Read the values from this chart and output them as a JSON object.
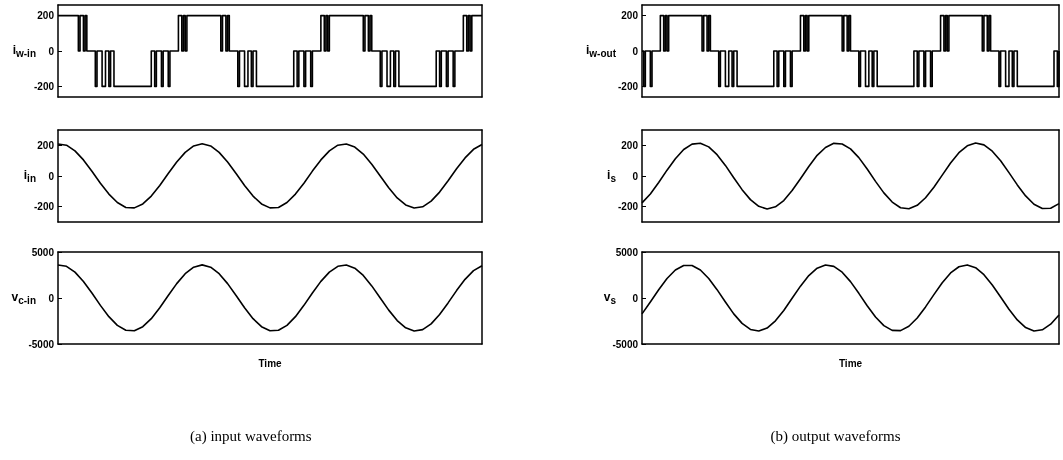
{
  "chart_data": [
    {
      "type": "step",
      "ylabel": "i$_{w-in}$",
      "ylim": [
        -260,
        260
      ],
      "yticks": [
        -200,
        0,
        200
      ],
      "tick_labels": "y",
      "color": "#000000",
      "categories": [
        null,
        null,
        null,
        null,
        null,
        null,
        null,
        null,
        null,
        null,
        null,
        null,
        null,
        null,
        null,
        null,
        null,
        null,
        null,
        null,
        null,
        null,
        null,
        null,
        null,
        null,
        null,
        null,
        null,
        null,
        null,
        null,
        null,
        null,
        null,
        null,
        null,
        null,
        null,
        null,
        null,
        null,
        null,
        null,
        null,
        null,
        null,
        null,
        null,
        null,
        null,
        null,
        null,
        null,
        null,
        null,
        null,
        null,
        null,
        null,
        null,
        null,
        null,
        null,
        null,
        null,
        null,
        null,
        null,
        null,
        null,
        null,
        null,
        null,
        null,
        null,
        null,
        null,
        null,
        null,
        null,
        null,
        null,
        null,
        null,
        null,
        null,
        null,
        null,
        null,
        null,
        null,
        null,
        null,
        null,
        null,
        null,
        null,
        null,
        null,
        null,
        null,
        null,
        null,
        null,
        null,
        null,
        null,
        null,
        null,
        null,
        null,
        null,
        null,
        null,
        null,
        null,
        null,
        null,
        null,
        null,
        null,
        null,
        null,
        null,
        null,
        null,
        null,
        null,
        null,
        null,
        null,
        null,
        null,
        null,
        null,
        null,
        null,
        null,
        null,
        null,
        null,
        null,
        null,
        null,
        null,
        null,
        null,
        null,
        null,
        null,
        null,
        null,
        null,
        null,
        null,
        null,
        null,
        null,
        null,
        null,
        null,
        null,
        null,
        null,
        null,
        null,
        null,
        null,
        null,
        null,
        null,
        null,
        null,
        null,
        null,
        null,
        null,
        null,
        null,
        null,
        null,
        null,
        null,
        null,
        null,
        null,
        null,
        null,
        null,
        null,
        null,
        null,
        null,
        null,
        null,
        null,
        null,
        null,
        null,
        null,
        null,
        null,
        null,
        null,
        null,
        null,
        null,
        null,
        null,
        null,
        null,
        null,
        null,
        null,
        null,
        null,
        null,
        null,
        null,
        null,
        null,
        null,
        null,
        null,
        null,
        null,
        null,
        null,
        null,
        null,
        null,
        null,
        null,
        null,
        null,
        null,
        null,
        null,
        null,
        null,
        null,
        null,
        null,
        null,
        null,
        null,
        null,
        null,
        null,
        null
      ],
      "values": [
        200,
        200,
        200,
        200,
        200,
        200,
        200,
        200,
        200,
        200,
        200,
        200,
        0,
        200,
        200,
        0,
        200,
        0,
        0,
        0,
        0,
        0,
        -200,
        0,
        0,
        0,
        -200,
        -200,
        0,
        0,
        -200,
        0,
        0,
        -200,
        -200,
        -200,
        -200,
        -200,
        -200,
        -200,
        -200,
        -200,
        -200,
        -200,
        -200,
        -200,
        -200,
        -200,
        -200,
        -200,
        -200,
        -200,
        -200,
        -200,
        -200,
        0,
        0,
        -200,
        0,
        0,
        0,
        -200,
        0,
        0,
        0,
        -200,
        0,
        0,
        0,
        0,
        0,
        200,
        200,
        0,
        200,
        0,
        200,
        200,
        200,
        200,
        200,
        200,
        200,
        200,
        200,
        200,
        200,
        200,
        200,
        200,
        200,
        200,
        200,
        200,
        200,
        200,
        0,
        200,
        200,
        0,
        200,
        0,
        0,
        0,
        0,
        0,
        -200,
        0,
        0,
        0,
        -200,
        -200,
        0,
        0,
        -200,
        0,
        0,
        -200,
        -200,
        -200,
        -200,
        -200,
        -200,
        -200,
        -200,
        -200,
        -200,
        -200,
        -200,
        -200,
        -200,
        -200,
        -200,
        -200,
        -200,
        -200,
        -200,
        -200,
        -200,
        0,
        0,
        -200,
        0,
        0,
        0,
        -200,
        0,
        0,
        0,
        -200,
        0,
        0,
        0,
        0,
        0,
        200,
        200,
        0,
        200,
        0,
        200,
        200,
        200,
        200,
        200,
        200,
        200,
        200,
        200,
        200,
        200,
        200,
        200,
        200,
        200,
        200,
        200,
        200,
        200,
        200,
        0,
        200,
        200,
        0,
        200,
        0,
        0,
        0,
        0,
        0,
        -200,
        0,
        0,
        0,
        -200,
        -200,
        0,
        0,
        -200,
        0,
        0,
        -200,
        -200,
        -200,
        -200,
        -200,
        -200,
        -200,
        -200,
        -200,
        -200,
        -200,
        -200,
        -200,
        -200,
        -200,
        -200,
        -200,
        -200,
        -200,
        -200,
        -200,
        -200,
        0,
        0,
        -200,
        0,
        0,
        0,
        -200,
        0,
        0,
        0,
        -200,
        0,
        0,
        0,
        0,
        0,
        200,
        200,
        0,
        200,
        0,
        200,
        200,
        200,
        200,
        200,
        200,
        200
      ]
    },
    {
      "type": "line",
      "ylabel": "i$_{in}$",
      "ylim": [
        -300,
        300
      ],
      "yticks": [
        -200,
        0,
        200
      ],
      "tick_labels": "y",
      "color": "#000000",
      "categories": [
        null,
        null,
        null,
        null,
        null,
        null,
        null,
        null,
        null,
        null,
        null,
        null,
        null,
        null,
        null,
        null,
        null,
        null,
        null,
        null,
        null,
        null,
        null,
        null,
        null,
        null,
        null,
        null,
        null,
        null,
        null,
        null,
        null,
        null,
        null,
        null,
        null,
        null,
        null,
        null,
        null,
        null,
        null,
        null,
        null,
        null,
        null,
        null,
        null,
        null,
        null
      ],
      "values": [
        209,
        201,
        164,
        105,
        31,
        -47,
        -118,
        -173,
        -205,
        -208,
        -182,
        -131,
        -62,
        16,
        91,
        154,
        196,
        210,
        196,
        154,
        91,
        16,
        -62,
        -131,
        -182,
        -208,
        -205,
        -173,
        -118,
        -47,
        32,
        105,
        164,
        201,
        209,
        189,
        143,
        77,
        0,
        -77,
        -143,
        -189,
        -209,
        -201,
        -164,
        -105,
        -31,
        47,
        118,
        174,
        205
      ]
    },
    {
      "type": "line",
      "ylabel": "v$_{c-in}$",
      "xlabel": "Time",
      "annotations": [
        "(a) input waveforms"
      ],
      "ylim": [
        -5000,
        5000
      ],
      "yticks": [
        -5000,
        0,
        5000
      ],
      "tick_labels": "y",
      "color": "#000000",
      "categories": [
        null,
        null,
        null,
        null,
        null,
        null,
        null,
        null,
        null,
        null,
        null,
        null,
        null,
        null,
        null,
        null,
        null,
        null,
        null,
        null,
        null,
        null,
        null,
        null,
        null,
        null,
        null,
        null,
        null,
        null,
        null,
        null,
        null,
        null,
        null,
        null,
        null,
        null,
        null,
        null,
        null,
        null,
        null,
        null,
        null,
        null,
        null,
        null,
        null,
        null,
        null
      ],
      "values": [
        3589,
        3442,
        2815,
        1800,
        536,
        -803,
        -2027,
        -2974,
        -3510,
        -3560,
        -3118,
        -2246,
        -1062,
        270,
        1562,
        2639,
        3352,
        3600,
        3352,
        2639,
        1562,
        266,
        -1062,
        -2246,
        -3118,
        -3560,
        -3510,
        -2974,
        -2027,
        -799,
        540,
        1804,
        2815,
        3442,
        3589,
        3244,
        2448,
        1314,
        -4,
        -1318,
        -2452,
        -3244,
        -3589,
        -3438,
        -2812,
        -1796,
        -533,
        806,
        2030,
        2977,
        3510
      ]
    },
    {
      "type": "step",
      "ylabel": "i$_{w-out}$",
      "ylim": [
        -260,
        260
      ],
      "yticks": [
        -200,
        0,
        200
      ],
      "tick_labels": "y",
      "color": "#000000",
      "categories": [
        null,
        null,
        null,
        null,
        null,
        null,
        null,
        null,
        null,
        null,
        null,
        null,
        null,
        null,
        null,
        null,
        null,
        null,
        null,
        null,
        null,
        null,
        null,
        null,
        null,
        null,
        null,
        null,
        null,
        null,
        null,
        null,
        null,
        null,
        null,
        null,
        null,
        null,
        null,
        null,
        null,
        null,
        null,
        null,
        null,
        null,
        null,
        null,
        null,
        null,
        null,
        null,
        null,
        null,
        null,
        null,
        null,
        null,
        null,
        null,
        null,
        null,
        null,
        null,
        null,
        null,
        null,
        null,
        null,
        null,
        null,
        null,
        null,
        null,
        null,
        null,
        null,
        null,
        null,
        null,
        null,
        null,
        null,
        null,
        null,
        null,
        null,
        null,
        null,
        null,
        null,
        null,
        null,
        null,
        null,
        null,
        null,
        null,
        null,
        null,
        null,
        null,
        null,
        null,
        null,
        null,
        null,
        null,
        null,
        null,
        null,
        null,
        null,
        null,
        null,
        null,
        null,
        null,
        null,
        null,
        null,
        null,
        null,
        null,
        null,
        null,
        null,
        null,
        null,
        null,
        null,
        null,
        null,
        null,
        null,
        null,
        null,
        null,
        null,
        null,
        null,
        null,
        null,
        null,
        null,
        null,
        null,
        null,
        null,
        null,
        null,
        null,
        null,
        null,
        null,
        null,
        null,
        null,
        null,
        null,
        null,
        null,
        null,
        null,
        null,
        null,
        null,
        null,
        null,
        null,
        null,
        null,
        null,
        null,
        null,
        null,
        null,
        null,
        null,
        null,
        null,
        null,
        null,
        null,
        null,
        null,
        null,
        null,
        null,
        null,
        null,
        null,
        null,
        null,
        null,
        null,
        null,
        null,
        null,
        null,
        null,
        null,
        null,
        null,
        null,
        null,
        null,
        null,
        null,
        null,
        null,
        null,
        null,
        null,
        null,
        null,
        null,
        null,
        null,
        null,
        null,
        null,
        null,
        null,
        null,
        null,
        null,
        null,
        null,
        null,
        null,
        null,
        null,
        null,
        null,
        null,
        null,
        null,
        null,
        null,
        null,
        null,
        null,
        null,
        null,
        null,
        null,
        null,
        null,
        null,
        null
      ],
      "values": [
        0,
        -200,
        0,
        0,
        0,
        -200,
        0,
        0,
        0,
        0,
        0,
        200,
        200,
        0,
        200,
        0,
        200,
        200,
        200,
        200,
        200,
        200,
        200,
        200,
        200,
        200,
        200,
        200,
        200,
        200,
        200,
        200,
        200,
        200,
        200,
        200,
        0,
        200,
        200,
        0,
        200,
        0,
        0,
        0,
        0,
        0,
        -200,
        0,
        0,
        0,
        -200,
        -200,
        0,
        0,
        -200,
        0,
        0,
        -200,
        -200,
        -200,
        -200,
        -200,
        -200,
        -200,
        -200,
        -200,
        -200,
        -200,
        -200,
        -200,
        -200,
        -200,
        -200,
        -200,
        -200,
        -200,
        -200,
        -200,
        -200,
        0,
        0,
        -200,
        0,
        0,
        0,
        -200,
        0,
        0,
        0,
        -200,
        0,
        0,
        0,
        0,
        0,
        200,
        200,
        0,
        200,
        0,
        200,
        200,
        200,
        200,
        200,
        200,
        200,
        200,
        200,
        200,
        200,
        200,
        200,
        200,
        200,
        200,
        200,
        200,
        200,
        200,
        0,
        200,
        200,
        0,
        200,
        0,
        0,
        0,
        0,
        0,
        -200,
        0,
        0,
        0,
        -200,
        -200,
        0,
        0,
        -200,
        0,
        0,
        -200,
        -200,
        -200,
        -200,
        -200,
        -200,
        -200,
        -200,
        -200,
        -200,
        -200,
        -200,
        -200,
        -200,
        -200,
        -200,
        -200,
        -200,
        -200,
        -200,
        -200,
        -200,
        0,
        0,
        -200,
        0,
        0,
        0,
        -200,
        0,
        0,
        0,
        -200,
        0,
        0,
        0,
        0,
        0,
        200,
        200,
        0,
        200,
        0,
        200,
        200,
        200,
        200,
        200,
        200,
        200,
        200,
        200,
        200,
        200,
        200,
        200,
        200,
        200,
        200,
        200,
        200,
        200,
        200,
        0,
        200,
        200,
        0,
        200,
        0,
        0,
        0,
        0,
        0,
        -200,
        0,
        0,
        0,
        -200,
        -200,
        0,
        0,
        -200,
        0,
        0,
        -200,
        -200,
        -200,
        -200,
        -200,
        -200,
        -200,
        -200,
        -200,
        -200,
        -200,
        -200,
        -200,
        -200,
        -200,
        -200,
        -200,
        -200,
        -200,
        -200,
        -200,
        -200,
        0,
        0,
        -200,
        0
      ]
    },
    {
      "type": "line",
      "ylabel": "i$_{s}$",
      "ylim": [
        -300,
        300
      ],
      "yticks": [
        -200,
        0,
        200
      ],
      "tick_labels": "y",
      "color": "#000000",
      "categories": [
        null,
        null,
        null,
        null,
        null,
        null,
        null,
        null,
        null,
        null,
        null,
        null,
        null,
        null,
        null,
        null,
        null,
        null,
        null,
        null,
        null,
        null,
        null,
        null,
        null,
        null,
        null,
        null,
        null,
        null,
        null,
        null,
        null,
        null,
        null,
        null,
        null,
        null,
        null,
        null,
        null,
        null,
        null,
        null,
        null,
        null,
        null,
        null,
        null,
        null,
        null
      ],
      "values": [
        -175,
        -117,
        -42,
        38,
        113,
        173,
        208,
        214,
        190,
        139,
        69,
        -11,
        -89,
        -154,
        -198,
        -215,
        -201,
        -160,
        -95,
        -18,
        62,
        135,
        186,
        213,
        209,
        177,
        120,
        46,
        -35,
        -110,
        -170,
        -207,
        -214,
        -191,
        -142,
        -73,
        6,
        85,
        152,
        197,
        215,
        203,
        162,
        99,
        22,
        -58,
        -130,
        -184,
        -212,
        -210,
        -180
      ]
    },
    {
      "type": "line",
      "ylabel": "v$_{s}$",
      "xlabel": "Time",
      "annotations": [
        "(b) output waveforms"
      ],
      "ylim": [
        -5000,
        5000
      ],
      "yticks": [
        -5000,
        0,
        5000
      ],
      "tick_labels": "y",
      "color": "#000000",
      "categories": [
        null,
        null,
        null,
        null,
        null,
        null,
        null,
        null,
        null,
        null,
        null,
        null,
        null,
        null,
        null,
        null,
        null,
        null,
        null,
        null,
        null,
        null,
        null,
        null,
        null,
        null,
        null,
        null,
        null,
        null,
        null,
        null,
        null,
        null,
        null,
        null,
        null,
        null,
        null,
        null,
        null,
        null,
        null,
        null,
        null,
        null,
        null,
        null,
        null,
        null,
        null
      ],
      "values": [
        -1724,
        -439,
        900,
        2120,
        3038,
        3535,
        3535,
        3042,
        2120,
        907,
        -439,
        -1724,
        -2761,
        -3416,
        -3593,
        -3269,
        -2484,
        -1354,
        -32,
        1289,
        2437,
        3240,
        3589,
        3438,
        2804,
        1778,
        508,
        -839,
        -2070,
        -3006,
        -3524,
        -3550,
        -3074,
        -2178,
        -968,
        371,
        1663,
        2722,
        3395,
        3596,
        3298,
        2534,
        1418,
        101,
        -1224,
        -2387,
        -3211,
        -3586,
        -3456,
        -2848,
        -1840
      ]
    }
  ]
}
